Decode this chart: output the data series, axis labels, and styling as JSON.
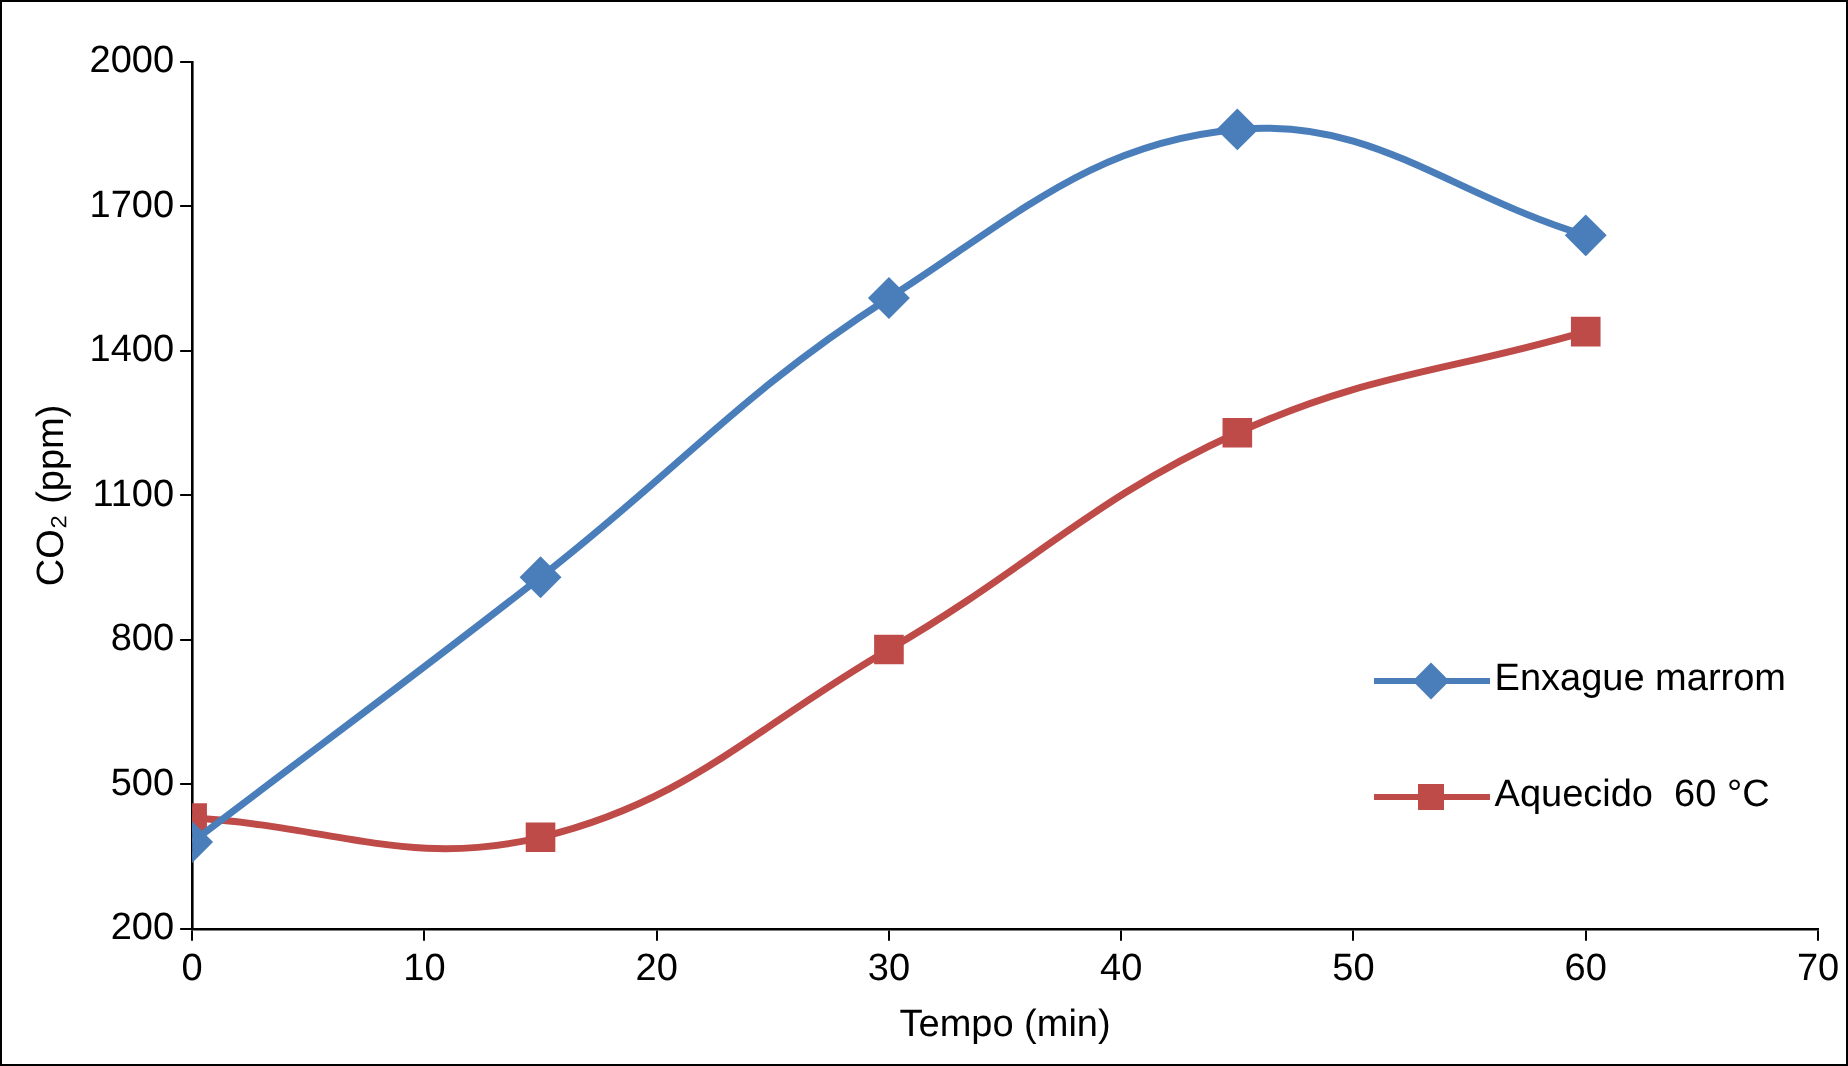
{
  "chart_data": {
    "type": "line",
    "xlabel": "Tempo (min)",
    "ylabel": "CO₂ (ppm)",
    "x": [
      0,
      15,
      30,
      45,
      60
    ],
    "series": [
      {
        "name": "Enxague marrom",
        "color": "#4a7ebb",
        "marker": "diamond",
        "values": [
          380,
          930,
          1510,
          1860,
          1640
        ]
      },
      {
        "name": "Aquecido  60 °C",
        "color": "#be4b48",
        "marker": "square",
        "values": [
          430,
          390,
          780,
          1230,
          1440
        ]
      }
    ],
    "xlim": [
      0,
      70
    ],
    "xticks": [
      0,
      10,
      20,
      30,
      40,
      50,
      60,
      70
    ],
    "ylim": [
      200,
      2000
    ],
    "yticks": [
      200,
      500,
      800,
      1100,
      1400,
      1700,
      2000
    ],
    "grid": false,
    "legend": "right"
  }
}
